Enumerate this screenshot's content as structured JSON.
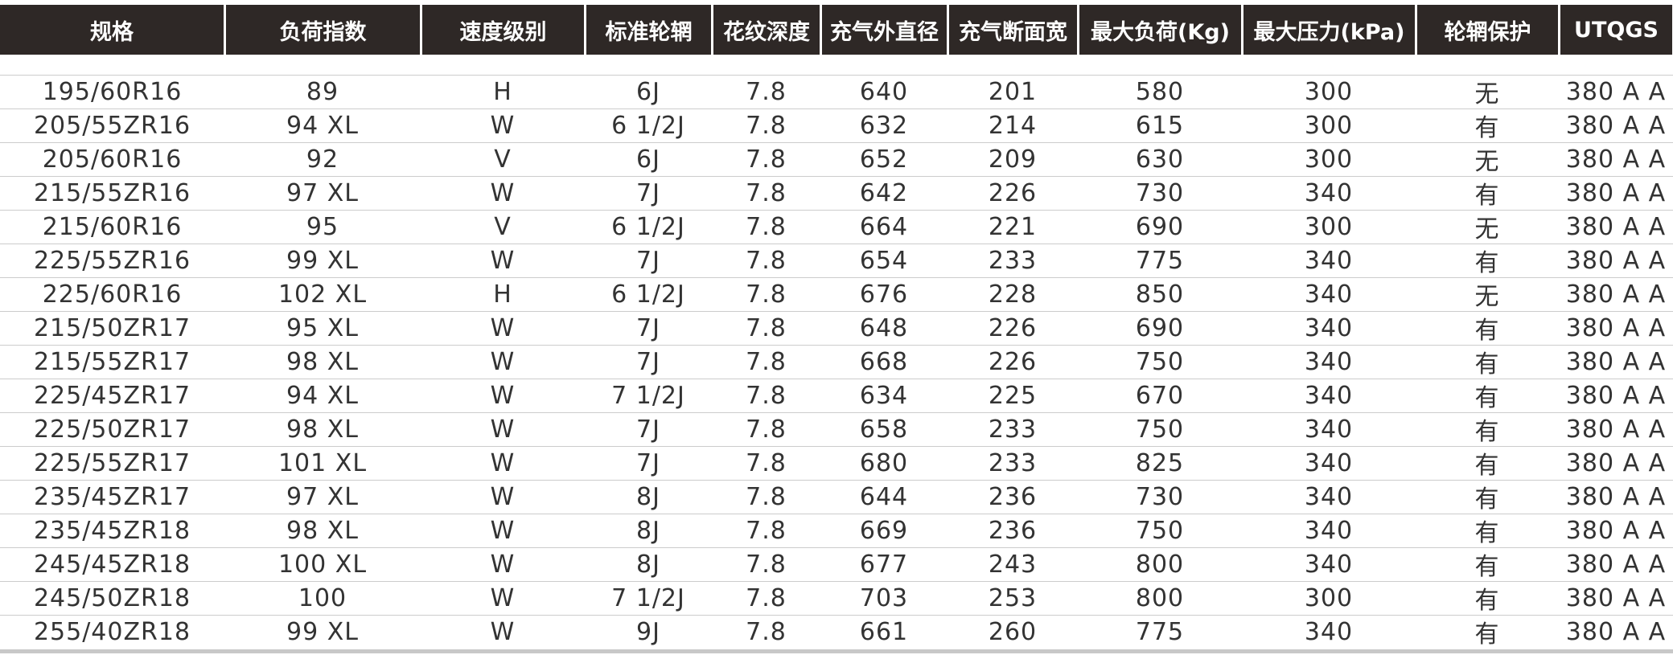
{
  "table": {
    "header": [
      "规格",
      "负荷指数",
      "速度级别",
      "标准轮辋",
      "花纹深度",
      "充气外直径",
      "充气断面宽",
      "最大负荷(Kg)",
      "最大压力(kPa)",
      "轮辋保护",
      "UTQGS"
    ],
    "rows": [
      [
        "195/60R16",
        "89",
        "H",
        "6J",
        "7.8",
        "640",
        "201",
        "580",
        "300",
        "无",
        "380 A A"
      ],
      [
        "205/55ZR16",
        "94 XL",
        "W",
        "6 1/2J",
        "7.8",
        "632",
        "214",
        "615",
        "300",
        "有",
        "380 A A"
      ],
      [
        "205/60R16",
        "92",
        "V",
        "6J",
        "7.8",
        "652",
        "209",
        "630",
        "300",
        "无",
        "380 A A"
      ],
      [
        "215/55ZR16",
        "97 XL",
        "W",
        "7J",
        "7.8",
        "642",
        "226",
        "730",
        "340",
        "有",
        "380 A A"
      ],
      [
        "215/60R16",
        "95",
        "V",
        "6 1/2J",
        "7.8",
        "664",
        "221",
        "690",
        "300",
        "无",
        "380 A A"
      ],
      [
        "225/55ZR16",
        "99 XL",
        "W",
        "7J",
        "7.8",
        "654",
        "233",
        "775",
        "340",
        "有",
        "380 A A"
      ],
      [
        "225/60R16",
        "102 XL",
        "H",
        "6 1/2J",
        "7.8",
        "676",
        "228",
        "850",
        "340",
        "无",
        "380 A A"
      ],
      [
        "215/50ZR17",
        "95 XL",
        "W",
        "7J",
        "7.8",
        "648",
        "226",
        "690",
        "340",
        "有",
        "380 A A"
      ],
      [
        "215/55ZR17",
        "98 XL",
        "W",
        "7J",
        "7.8",
        "668",
        "226",
        "750",
        "340",
        "有",
        "380 A A"
      ],
      [
        "225/45ZR17",
        "94 XL",
        "W",
        "7 1/2J",
        "7.8",
        "634",
        "225",
        "670",
        "340",
        "有",
        "380 A A"
      ],
      [
        "225/50ZR17",
        "98 XL",
        "W",
        "7J",
        "7.8",
        "658",
        "233",
        "750",
        "340",
        "有",
        "380 A A"
      ],
      [
        "225/55ZR17",
        "101 XL",
        "W",
        "7J",
        "7.8",
        "680",
        "233",
        "825",
        "340",
        "有",
        "380 A A"
      ],
      [
        "235/45ZR17",
        "97 XL",
        "W",
        "8J",
        "7.8",
        "644",
        "236",
        "730",
        "340",
        "有",
        "380 A A"
      ],
      [
        "235/45ZR18",
        "98 XL",
        "W",
        "8J",
        "7.8",
        "669",
        "236",
        "750",
        "340",
        "有",
        "380 A A"
      ],
      [
        "245/45ZR18",
        "100 XL",
        "W",
        "8J",
        "7.8",
        "677",
        "243",
        "800",
        "340",
        "有",
        "380 A A"
      ],
      [
        "245/50ZR18",
        "100",
        "W",
        "7 1/2J",
        "7.8",
        "703",
        "253",
        "800",
        "300",
        "有",
        "380 A A"
      ],
      [
        "255/40ZR18",
        "99 XL",
        "W",
        "9J",
        "7.8",
        "661",
        "260",
        "775",
        "340",
        "有",
        "380 A A"
      ]
    ]
  }
}
